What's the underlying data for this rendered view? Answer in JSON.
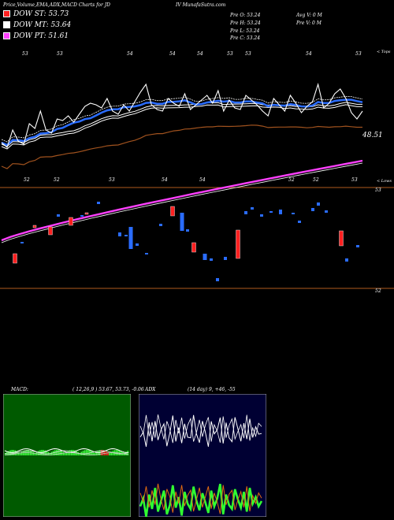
{
  "header": {
    "left": "Price,Volume,EMA,ADX,MACD Charts for JD",
    "right": "IV MunafaSutra.com"
  },
  "legend": [
    {
      "label": "DOW ST: 53.73",
      "color": "#ff2020"
    },
    {
      "label": "DOW MT: 53.64",
      "color": "#ffffff"
    },
    {
      "label": "DOW PT: 51.61",
      "color": "#ff40ff"
    }
  ],
  "info": {
    "pre_open": "Pre  O: 53.24",
    "pre_high": "Pre  H: 53.24",
    "pre_low": "Pre  L: 53.24",
    "pre_close": "Pre  C: 53.24",
    "avg_volume": "Avg V: 0  M",
    "pre_volume": "Pre  V: 0  M"
  },
  "macd_label": "MACD:",
  "macd_params": "( 12,26,9 ) 53.67,  53.73,  -0.06",
  "adx_label": "ADX",
  "adx_params": "(14  day) 9, +46, -55",
  "chart_data": {
    "type": "line",
    "price_labels": {
      "upper_right": "< Tops",
      "lower_right": "< Lows",
      "last_price": "48.51",
      "y_tick_53": "53",
      "y_tick_52": "52"
    },
    "top_tick_labels": [
      "53",
      "53",
      "54",
      "54",
      "54",
      "53",
      "53",
      "54",
      "53"
    ],
    "bottom_tick_labels": [
      "52",
      "52",
      "53",
      "54",
      "54",
      "52",
      "52",
      "53"
    ],
    "close": [
      51.2,
      50.9,
      52.0,
      51.3,
      51.1,
      52.4,
      52.1,
      53.2,
      52.0,
      51.8,
      52.7,
      52.6,
      52.9,
      52.5,
      53.0,
      53.5,
      53.7,
      53.6,
      53.4,
      54.0,
      53.2,
      53.0,
      53.6,
      53.2,
      53.8,
      54.4,
      54.9,
      53.6,
      53.3,
      53.2,
      54.0,
      53.7,
      53.5,
      54.3,
      53.3,
      53.6,
      53.9,
      54.2,
      53.7,
      54.5,
      53.2,
      53.9,
      53.4,
      53.3,
      54.2,
      53.9,
      53.6,
      53.2,
      52.9,
      54.0,
      53.6,
      53.2,
      54.2,
      53.7,
      53.1,
      53.5,
      53.8,
      54.9,
      53.4,
      53.7,
      54.3,
      54.6,
      54.0,
      53.1,
      52.7,
      53.2
    ],
    "adx_plus": [
      46,
      52,
      38,
      55,
      44,
      60,
      42,
      50,
      58,
      40,
      47,
      62,
      45,
      53,
      39,
      57,
      48,
      44,
      61,
      50,
      43,
      56,
      49,
      41,
      58,
      46,
      52,
      63,
      40,
      55,
      47,
      44,
      59,
      51,
      45,
      57,
      42,
      60,
      48,
      53,
      46,
      50
    ],
    "adx_minus": [
      55,
      48,
      60,
      44,
      57,
      46,
      62,
      50,
      42,
      58,
      52,
      40,
      56,
      47,
      61,
      45,
      53,
      57,
      41,
      50,
      59,
      44,
      52,
      60,
      43,
      55,
      48,
      39,
      61,
      46,
      54,
      57,
      42,
      50,
      56,
      44,
      60,
      41,
      53,
      47,
      55,
      51
    ]
  }
}
